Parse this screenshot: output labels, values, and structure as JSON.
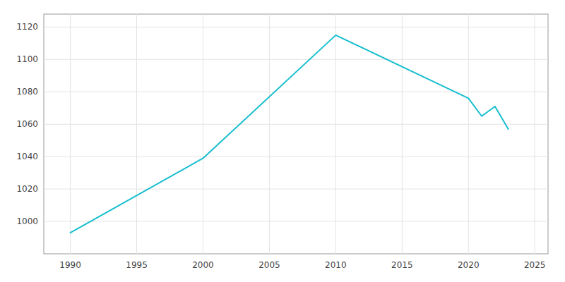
{
  "chart_data": {
    "type": "line",
    "x": [
      1990,
      2000,
      2010,
      2020,
      2021,
      2022,
      2023
    ],
    "values": [
      993,
      1039,
      1115,
      1076,
      1065,
      1071,
      1057
    ],
    "color": "#17becf",
    "xlim": [
      1988,
      2026
    ],
    "ylim": [
      980,
      1128
    ],
    "xticks": [
      1990,
      1995,
      2000,
      2005,
      2010,
      2015,
      2020,
      2025
    ],
    "yticks": [
      1000,
      1020,
      1040,
      1060,
      1080,
      1100,
      1120
    ],
    "grid": true
  }
}
